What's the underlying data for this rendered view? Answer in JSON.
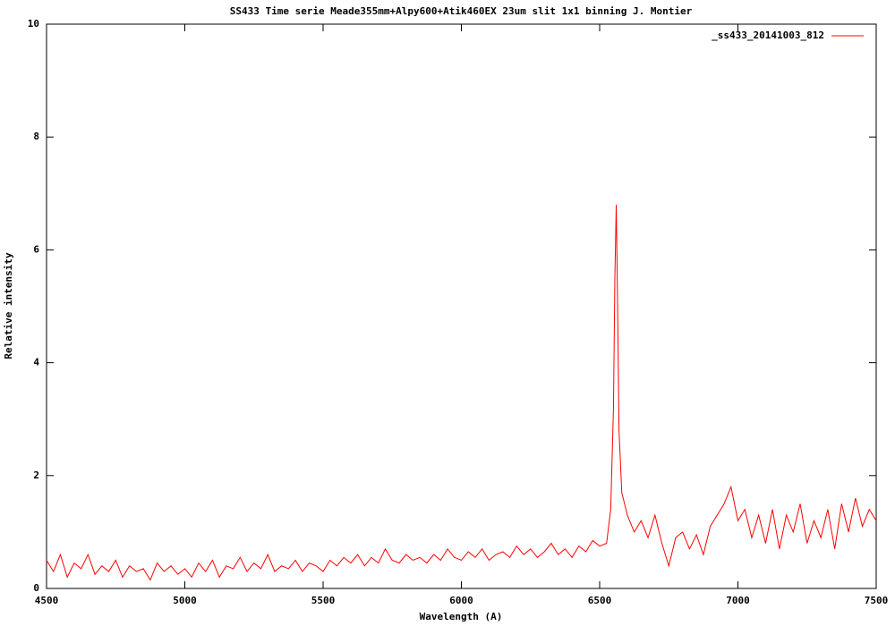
{
  "chart_data": {
    "type": "line",
    "title": "SS433 Time serie Meade355mm+Alpy600+Atik460EX 23um slit 1x1 binning J. Montier",
    "x_label": "Wavelength (A)",
    "y_label": "Relative intensity",
    "xlim": [
      4500,
      7500
    ],
    "xticks": [
      4500,
      5000,
      5500,
      6000,
      6500,
      7000,
      7500
    ],
    "ylim": [
      0,
      10
    ],
    "yticks": [
      0,
      2,
      4,
      6,
      8,
      10
    ],
    "legend": "top-right",
    "grid": false,
    "x": [
      4500,
      4525,
      4550,
      4575,
      4600,
      4625,
      4650,
      4675,
      4700,
      4725,
      4750,
      4775,
      4800,
      4825,
      4850,
      4875,
      4900,
      4925,
      4950,
      4975,
      5000,
      5025,
      5050,
      5075,
      5100,
      5125,
      5150,
      5175,
      5200,
      5225,
      5250,
      5275,
      5300,
      5325,
      5350,
      5375,
      5400,
      5425,
      5450,
      5475,
      5500,
      5525,
      5550,
      5575,
      5600,
      5625,
      5650,
      5675,
      5700,
      5725,
      5750,
      5775,
      5800,
      5825,
      5850,
      5875,
      5900,
      5925,
      5950,
      5975,
      6000,
      6025,
      6050,
      6075,
      6100,
      6125,
      6150,
      6175,
      6200,
      6225,
      6250,
      6275,
      6300,
      6325,
      6350,
      6375,
      6400,
      6425,
      6450,
      6475,
      6500,
      6525,
      6540,
      6550,
      6555,
      6560,
      6565,
      6570,
      6580,
      6600,
      6625,
      6650,
      6675,
      6700,
      6725,
      6750,
      6775,
      6800,
      6825,
      6850,
      6875,
      6900,
      6925,
      6950,
      6975,
      7000,
      7025,
      7050,
      7075,
      7100,
      7125,
      7150,
      7175,
      7200,
      7225,
      7250,
      7275,
      7300,
      7325,
      7350,
      7375,
      7400,
      7425,
      7450,
      7475,
      7500
    ],
    "series": [
      {
        "name": "_ss433_20141003_812",
        "color": "#ff0000",
        "values": [
          0.5,
          0.3,
          0.6,
          0.2,
          0.45,
          0.35,
          0.6,
          0.25,
          0.4,
          0.3,
          0.5,
          0.2,
          0.4,
          0.3,
          0.35,
          0.15,
          0.45,
          0.3,
          0.4,
          0.25,
          0.35,
          0.2,
          0.45,
          0.3,
          0.5,
          0.2,
          0.4,
          0.35,
          0.55,
          0.3,
          0.45,
          0.35,
          0.6,
          0.3,
          0.4,
          0.35,
          0.5,
          0.3,
          0.45,
          0.4,
          0.3,
          0.5,
          0.4,
          0.55,
          0.45,
          0.6,
          0.4,
          0.55,
          0.45,
          0.7,
          0.5,
          0.45,
          0.6,
          0.5,
          0.55,
          0.45,
          0.6,
          0.5,
          0.7,
          0.55,
          0.5,
          0.65,
          0.55,
          0.7,
          0.5,
          0.6,
          0.65,
          0.55,
          0.75,
          0.6,
          0.7,
          0.55,
          0.65,
          0.8,
          0.6,
          0.7,
          0.55,
          0.75,
          0.65,
          0.85,
          0.75,
          0.8,
          1.4,
          3.2,
          5.5,
          6.8,
          5.0,
          2.8,
          1.7,
          1.3,
          1.0,
          1.2,
          0.9,
          1.3,
          0.8,
          0.4,
          0.9,
          1.0,
          0.7,
          0.95,
          0.6,
          1.1,
          1.3,
          1.5,
          1.8,
          1.2,
          1.4,
          0.9,
          1.3,
          0.8,
          1.4,
          0.7,
          1.3,
          1.0,
          1.5,
          0.8,
          1.2,
          0.9,
          1.4,
          0.7,
          1.5,
          1.0,
          1.6,
          1.1,
          1.4,
          1.2
        ]
      }
    ]
  }
}
